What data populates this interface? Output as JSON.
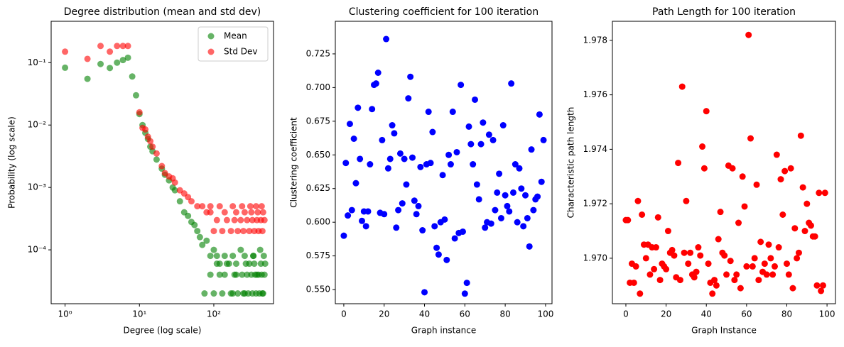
{
  "chart_data": [
    {
      "type": "scatter",
      "title": "Degree distribution (mean and std dev)",
      "xlabel": "Degree (log scale)",
      "ylabel": "Probability (log scale)",
      "xscale": "log",
      "yscale": "log",
      "xlim": [
        0.65,
        635
      ],
      "ylim": [
        1.37e-05,
        0.46
      ],
      "xticks": [
        {
          "value": 1,
          "label": "10⁰"
        },
        {
          "value": 10,
          "label": "10¹"
        },
        {
          "value": 100,
          "label": "10²"
        }
      ],
      "yticks": [
        {
          "value": 0.0001,
          "label": "10⁻⁴"
        },
        {
          "value": 0.001,
          "label": "10⁻³"
        },
        {
          "value": 0.01,
          "label": "10⁻²"
        },
        {
          "value": 0.1,
          "label": "10⁻¹"
        }
      ],
      "legend": "upper right",
      "series": [
        {
          "name": "Mean",
          "color": "#008000",
          "alpha": 0.6,
          "x": [
            1,
            2,
            3,
            4,
            5,
            6,
            7,
            8,
            9,
            10,
            11,
            12,
            13,
            14,
            15,
            17,
            20,
            22,
            25,
            28,
            30,
            35,
            40,
            45,
            50,
            55,
            60,
            65,
            70,
            75,
            80,
            90,
            100,
            110,
            120,
            140,
            160,
            180,
            200,
            230,
            260,
            300,
            340,
            380,
            420,
            460,
            490,
            100,
            130,
            170,
            210,
            250,
            290,
            330,
            370,
            410,
            450,
            90,
            140,
            190,
            240,
            280,
            320,
            360,
            400,
            440,
            480,
            120,
            150,
            200,
            270,
            350,
            430,
            110,
            180,
            260,
            340,
            470
          ],
          "values": [
            0.083,
            0.055,
            0.095,
            0.082,
            0.1,
            0.11,
            0.12,
            0.06,
            0.03,
            0.015,
            0.01,
            0.0075,
            0.006,
            0.0045,
            0.0038,
            0.0028,
            0.002,
            0.0016,
            0.0013,
            0.001,
            0.0009,
            0.0006,
            0.0004,
            0.00035,
            0.00028,
            0.00025,
            0.0002,
            0.00016,
            0.00012,
            2e-05,
            0.00014,
            8e-05,
            0.0001,
            6e-05,
            4e-05,
            8e-05,
            6e-05,
            2e-05,
            4e-05,
            0.0001,
            2e-05,
            6e-05,
            8e-05,
            4e-05,
            0.0001,
            2e-05,
            6e-05,
            2e-05,
            2e-05,
            2e-05,
            2e-05,
            2e-05,
            2e-05,
            2e-05,
            2e-05,
            2e-05,
            2e-05,
            4e-05,
            4e-05,
            4e-05,
            4e-05,
            4e-05,
            4e-05,
            4e-05,
            4e-05,
            4e-05,
            4e-05,
            6e-05,
            6e-05,
            6e-05,
            6e-05,
            6e-05,
            6e-05,
            8e-05,
            8e-05,
            8e-05,
            8e-05,
            8e-05
          ]
        },
        {
          "name": "Std Dev",
          "color": "#ff0000",
          "alpha": 0.6,
          "x": [
            1,
            2,
            3,
            4,
            5,
            6,
            7,
            10,
            11,
            12,
            13,
            14,
            15,
            17,
            20,
            22,
            25,
            28,
            30,
            35,
            40,
            45,
            50,
            60,
            70,
            80,
            90,
            100,
            130,
            170,
            210,
            250,
            300,
            350,
            400,
            450,
            110,
            150,
            190,
            230,
            280,
            330,
            380,
            430,
            480,
            90,
            140,
            200,
            260,
            320,
            390,
            460,
            120,
            180,
            240,
            310,
            370,
            440
          ],
          "values": [
            0.15,
            0.115,
            0.185,
            0.15,
            0.185,
            0.185,
            0.185,
            0.016,
            0.009,
            0.0085,
            0.0065,
            0.0055,
            0.0045,
            0.0035,
            0.0022,
            0.0017,
            0.0015,
            0.0014,
            0.0012,
            0.0009,
            0.0008,
            0.0007,
            0.0006,
            0.0005,
            0.0005,
            0.0004,
            0.0005,
            0.0002,
            0.0002,
            0.0002,
            0.0002,
            0.0002,
            0.0002,
            0.0002,
            0.0002,
            0.0002,
            0.0003,
            0.0003,
            0.0003,
            0.0003,
            0.0003,
            0.0003,
            0.0003,
            0.0003,
            0.0003,
            0.0004,
            0.0004,
            0.0004,
            0.0004,
            0.0004,
            0.0004,
            0.0004,
            0.0005,
            0.0005,
            0.0005,
            0.0005,
            0.0005,
            0.0005
          ]
        }
      ]
    },
    {
      "type": "scatter",
      "title": "Clustering coefficient for 100 iteration",
      "xlabel": "Graph instance",
      "ylabel": "Clustering coefficient",
      "xlim": [
        -4.2,
        103.2
      ],
      "ylim": [
        0.5395,
        0.7492
      ],
      "xticks": [
        0,
        20,
        40,
        60,
        80,
        100
      ],
      "yticks": [
        {
          "value": 0.55,
          "label": "0.550"
        },
        0.575,
        {
          "value": 0.6,
          "label": "0.600"
        },
        0.625,
        {
          "value": 0.65,
          "label": "0.650"
        },
        0.675,
        {
          "value": 0.7,
          "label": "0.700"
        },
        0.725
      ],
      "series": [
        {
          "name": "Clustering coefficient",
          "color": "#0000ff",
          "alpha": 1,
          "x": [
            0,
            1,
            2,
            3,
            4,
            5,
            6,
            7,
            8,
            9,
            10,
            11,
            12,
            13,
            14,
            15,
            16,
            17,
            18,
            19,
            20,
            21,
            22,
            23,
            24,
            25,
            26,
            27,
            28,
            29,
            30,
            31,
            32,
            33,
            34,
            35,
            36,
            37,
            38,
            39,
            40,
            41,
            42,
            43,
            44,
            45,
            46,
            47,
            48,
            49,
            50,
            51,
            52,
            53,
            54,
            55,
            56,
            57,
            58,
            59,
            60,
            61,
            62,
            63,
            64,
            65,
            66,
            67,
            68,
            69,
            70,
            71,
            72,
            73,
            74,
            75,
            76,
            77,
            78,
            79,
            80,
            81,
            82,
            83,
            84,
            85,
            86,
            87,
            88,
            89,
            90,
            91,
            92,
            93,
            94,
            95,
            96,
            97,
            98,
            99
          ],
          "values": [
            0.59,
            0.644,
            0.605,
            0.673,
            0.609,
            0.662,
            0.629,
            0.685,
            0.647,
            0.601,
            0.608,
            0.597,
            0.608,
            0.643,
            0.684,
            0.702,
            0.703,
            0.711,
            0.607,
            0.661,
            0.606,
            0.736,
            0.64,
            0.647,
            0.672,
            0.666,
            0.596,
            0.609,
            0.651,
            0.614,
            0.647,
            0.628,
            0.692,
            0.708,
            0.648,
            0.616,
            0.606,
            0.612,
            0.641,
            0.594,
            0.548,
            0.643,
            0.682,
            0.644,
            0.667,
            0.597,
            0.581,
            0.576,
            0.6,
            0.635,
            0.602,
            0.572,
            0.65,
            0.643,
            0.682,
            0.588,
            0.652,
            0.592,
            0.702,
            0.593,
            0.547,
            0.555,
            0.671,
            0.658,
            0.643,
            0.691,
            0.628,
            0.617,
            0.658,
            0.674,
            0.596,
            0.6,
            0.665,
            0.599,
            0.661,
            0.609,
            0.622,
            0.636,
            0.603,
            0.672,
            0.62,
            0.612,
            0.608,
            0.703,
            0.622,
            0.643,
            0.6,
            0.64,
            0.625,
            0.597,
            0.62,
            0.603,
            0.582,
            0.654,
            0.609,
            0.617,
            0.619,
            0.68,
            0.63,
            0.661
          ]
        }
      ]
    },
    {
      "type": "scatter",
      "title": "Path Length for 100 iteration",
      "xlabel": "Graph Instance",
      "ylabel": "Characteristic path length",
      "xlim": [
        -6.7,
        104.2
      ],
      "ylim": [
        1.96833,
        1.9787
      ],
      "xticks": [
        0,
        20,
        40,
        60,
        80,
        100
      ],
      "yticks": [
        {
          "value": 1.97,
          "label": "1.970"
        },
        1.972,
        1.974,
        1.976,
        1.978
      ],
      "series": [
        {
          "name": "Characteristic path length",
          "color": "#ff0000",
          "alpha": 1,
          "x": [
            0,
            1,
            2,
            3,
            4,
            5,
            6,
            7,
            8,
            9,
            10,
            11,
            12,
            13,
            14,
            15,
            16,
            17,
            18,
            19,
            20,
            21,
            22,
            23,
            24,
            25,
            26,
            27,
            28,
            29,
            30,
            31,
            32,
            33,
            34,
            35,
            36,
            37,
            38,
            39,
            40,
            41,
            42,
            43,
            44,
            45,
            46,
            47,
            48,
            49,
            50,
            51,
            52,
            53,
            54,
            55,
            56,
            57,
            58,
            59,
            60,
            61,
            62,
            63,
            64,
            65,
            66,
            67,
            68,
            69,
            70,
            71,
            72,
            73,
            74,
            75,
            76,
            77,
            78,
            79,
            80,
            81,
            82,
            83,
            84,
            85,
            86,
            87,
            88,
            89,
            90,
            91,
            92,
            93,
            94,
            95,
            96,
            97,
            98,
            99
          ],
          "values": [
            1.9714,
            1.9714,
            1.9691,
            1.9698,
            1.9691,
            1.9697,
            1.9721,
            1.9687,
            1.9716,
            1.9705,
            1.97,
            1.9705,
            1.9694,
            1.9704,
            1.9696,
            1.9704,
            1.9715,
            1.9692,
            1.9698,
            1.9697,
            1.9696,
            1.971,
            1.9702,
            1.9703,
            1.9701,
            1.9693,
            1.9735,
            1.9692,
            1.9763,
            1.9702,
            1.9721,
            1.9698,
            1.9702,
            1.9694,
            1.9693,
            1.9695,
            1.9704,
            1.9701,
            1.9741,
            1.9733,
            1.9754,
            1.9698,
            1.9691,
            1.9687,
            1.9692,
            1.969,
            1.9707,
            1.9717,
            1.9702,
            1.9701,
            1.9694,
            1.9734,
            1.9699,
            1.9733,
            1.9692,
            1.9694,
            1.9713,
            1.9689,
            1.973,
            1.9719,
            1.9697,
            1.9782,
            1.9744,
            1.9697,
            1.97,
            1.9727,
            1.9692,
            1.9706,
            1.9695,
            1.9698,
            1.9694,
            1.9705,
            1.97,
            1.9694,
            1.9697,
            1.9738,
            1.9704,
            1.9729,
            1.9716,
            1.9732,
            1.9698,
            1.9694,
            1.9733,
            1.9689,
            1.9711,
            1.97,
            1.9702,
            1.9745,
            1.9726,
            1.971,
            1.972,
            1.9713,
            1.9712,
            1.9708,
            1.9708,
            1.969,
            1.9724,
            1.9688,
            1.969,
            1.9724
          ]
        }
      ]
    }
  ]
}
